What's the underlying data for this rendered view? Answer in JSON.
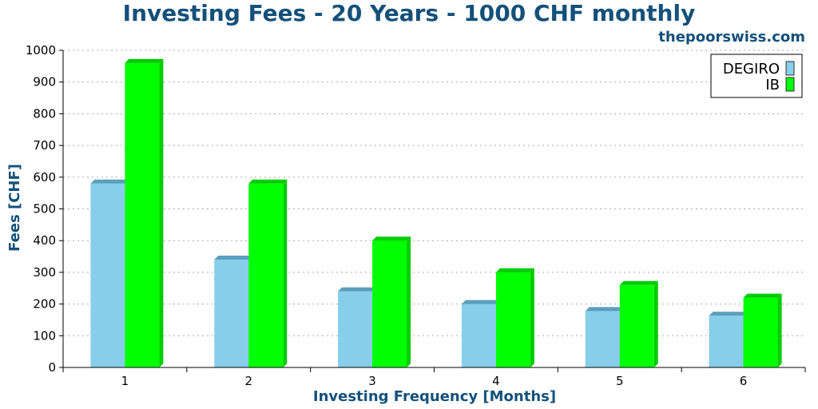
{
  "watermark": "thepoorswiss.com",
  "chart_data": {
    "type": "bar",
    "title": "Investing Fees - 20 Years - 1000 CHF monthly",
    "xlabel": "Investing Frequency [Months]",
    "ylabel": "Fees [CHF]",
    "categories": [
      "1",
      "2",
      "3",
      "4",
      "5",
      "6"
    ],
    "series": [
      {
        "name": "DEGIRO",
        "values": [
          580,
          340,
          240,
          200,
          178,
          163
        ],
        "color": "#87ceeb",
        "top_color": "#5a9fbd"
      },
      {
        "name": "IB",
        "values": [
          960,
          580,
          400,
          300,
          260,
          220
        ],
        "color": "#00ff00",
        "top_color": "#00cc00"
      }
    ],
    "ylim": [
      0,
      1000
    ],
    "yticks": [
      0,
      100,
      200,
      300,
      400,
      500,
      600,
      700,
      800,
      900,
      1000
    ],
    "grid": true,
    "legend_position": "top-right"
  }
}
